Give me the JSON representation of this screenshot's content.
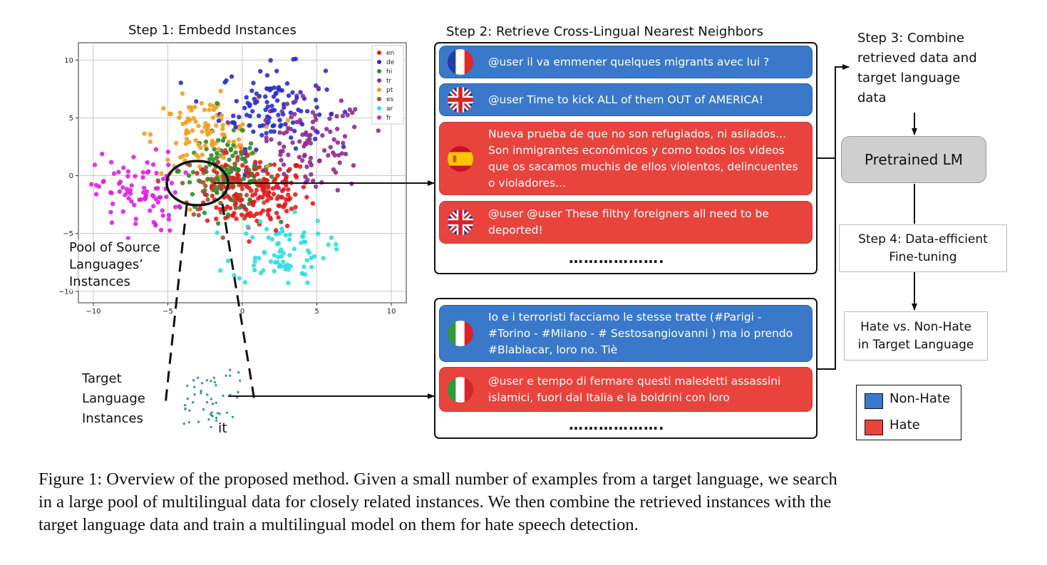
{
  "step1_title": "Step 1: Embedd Instances",
  "step2_title": "Step 2: Retrieve Cross-Lingual Nearest Neighbors",
  "step3_lines": [
    "Step 3: Combine",
    "retrieved data and",
    "target language",
    "data"
  ],
  "pretrained_lm": "Pretrained LM",
  "step4_lines": [
    "Step 4: Data-efficient",
    "Fine-tuning"
  ],
  "output_lines": [
    "Hate vs. Non-Hate",
    "in Target Language"
  ],
  "pool_label_lines": [
    "Pool of Source",
    "Languages’",
    "Instances"
  ],
  "target_label_lines": [
    "Target",
    "Language",
    "Instances"
  ],
  "target_lang_code": "it",
  "ellipsis": "……………….",
  "legend_box": {
    "nonhate": "Non-Hate",
    "hate": "Hate"
  },
  "colors": {
    "nonhate": "#3a79c9",
    "hate": "#e8443d",
    "lm_box": "#cfcfcf",
    "target_points": "#3a9d9a"
  },
  "retrieved_cards": [
    {
      "flag": "fr-flag-icon",
      "label": "nonhate",
      "text": "@user il va emmener quelques migrants avec lui ?"
    },
    {
      "flag": "uk-flag-icon",
      "label": "nonhate",
      "text": "@user Time to kick ALL of them OUT of AMERICA!"
    },
    {
      "flag": "es-flag-icon",
      "label": "hate",
      "text": "Nueva prueba de que no son refugiados, ni asilados... Son inmigrantes económicos y como todos los videos que os sacamos muchis de ellos violentos, delincuentes o violadores..."
    },
    {
      "flag": "uk-flag-icon",
      "label": "hate",
      "text": "@user @user These filthy foreigners all need to be deported!"
    }
  ],
  "target_cards": [
    {
      "flag": "it-flag-icon",
      "label": "nonhate",
      "text": "Io e i terroristi facciamo le stesse tratte (#Parigi - #Torino - #Milano - # Sestosangiovanni  ) ma io prendo #Blablacar, loro no. Tiè"
    },
    {
      "flag": "it-flag-icon",
      "label": "hate",
      "text": "@user e tempo di fermare questi maledetti assassini islamici, fuori dal Italia e la boldrini con loro"
    }
  ],
  "chart_data": {
    "type": "scatter",
    "title": "Step 1: Embedd Instances",
    "xlabel": "",
    "ylabel": "",
    "xlim": [
      -11,
      11
    ],
    "ylim": [
      -11,
      11.5
    ],
    "xticks": [
      -10,
      -5,
      0,
      5,
      10
    ],
    "yticks": [
      10,
      5,
      0,
      -5,
      -10
    ],
    "grid": true,
    "legend_position": "top-right",
    "series": [
      {
        "name": "en",
        "color": "#e41a1c",
        "center": [
          1.0,
          -1.5
        ],
        "spread": [
          2.2,
          2.0
        ],
        "count": 170
      },
      {
        "name": "de",
        "color": "#2c2ccc",
        "center": [
          2.0,
          6.0
        ],
        "spread": [
          2.2,
          2.2
        ],
        "count": 110
      },
      {
        "name": "hi",
        "color": "#2e8b2e",
        "center": [
          -1.0,
          0.5
        ],
        "spread": [
          2.0,
          2.2
        ],
        "count": 100
      },
      {
        "name": "tr",
        "color": "#8e2c8e",
        "center": [
          4.5,
          2.5
        ],
        "spread": [
          2.4,
          2.6
        ],
        "count": 110
      },
      {
        "name": "pt",
        "color": "#f0a020",
        "center": [
          -2.5,
          3.5
        ],
        "spread": [
          2.2,
          2.0
        ],
        "count": 110
      },
      {
        "name": "es",
        "color": "#a0522d",
        "center": [
          -1.0,
          -0.8
        ],
        "spread": [
          2.0,
          2.0
        ],
        "count": 90
      },
      {
        "name": "ar",
        "color": "#33dddd",
        "center": [
          2.5,
          -6.5
        ],
        "spread": [
          2.0,
          1.8
        ],
        "count": 80
      },
      {
        "name": "fr",
        "color": "#e020e0",
        "center": [
          -7.0,
          -1.5
        ],
        "spread": [
          1.8,
          2.2
        ],
        "count": 90
      }
    ]
  }
}
